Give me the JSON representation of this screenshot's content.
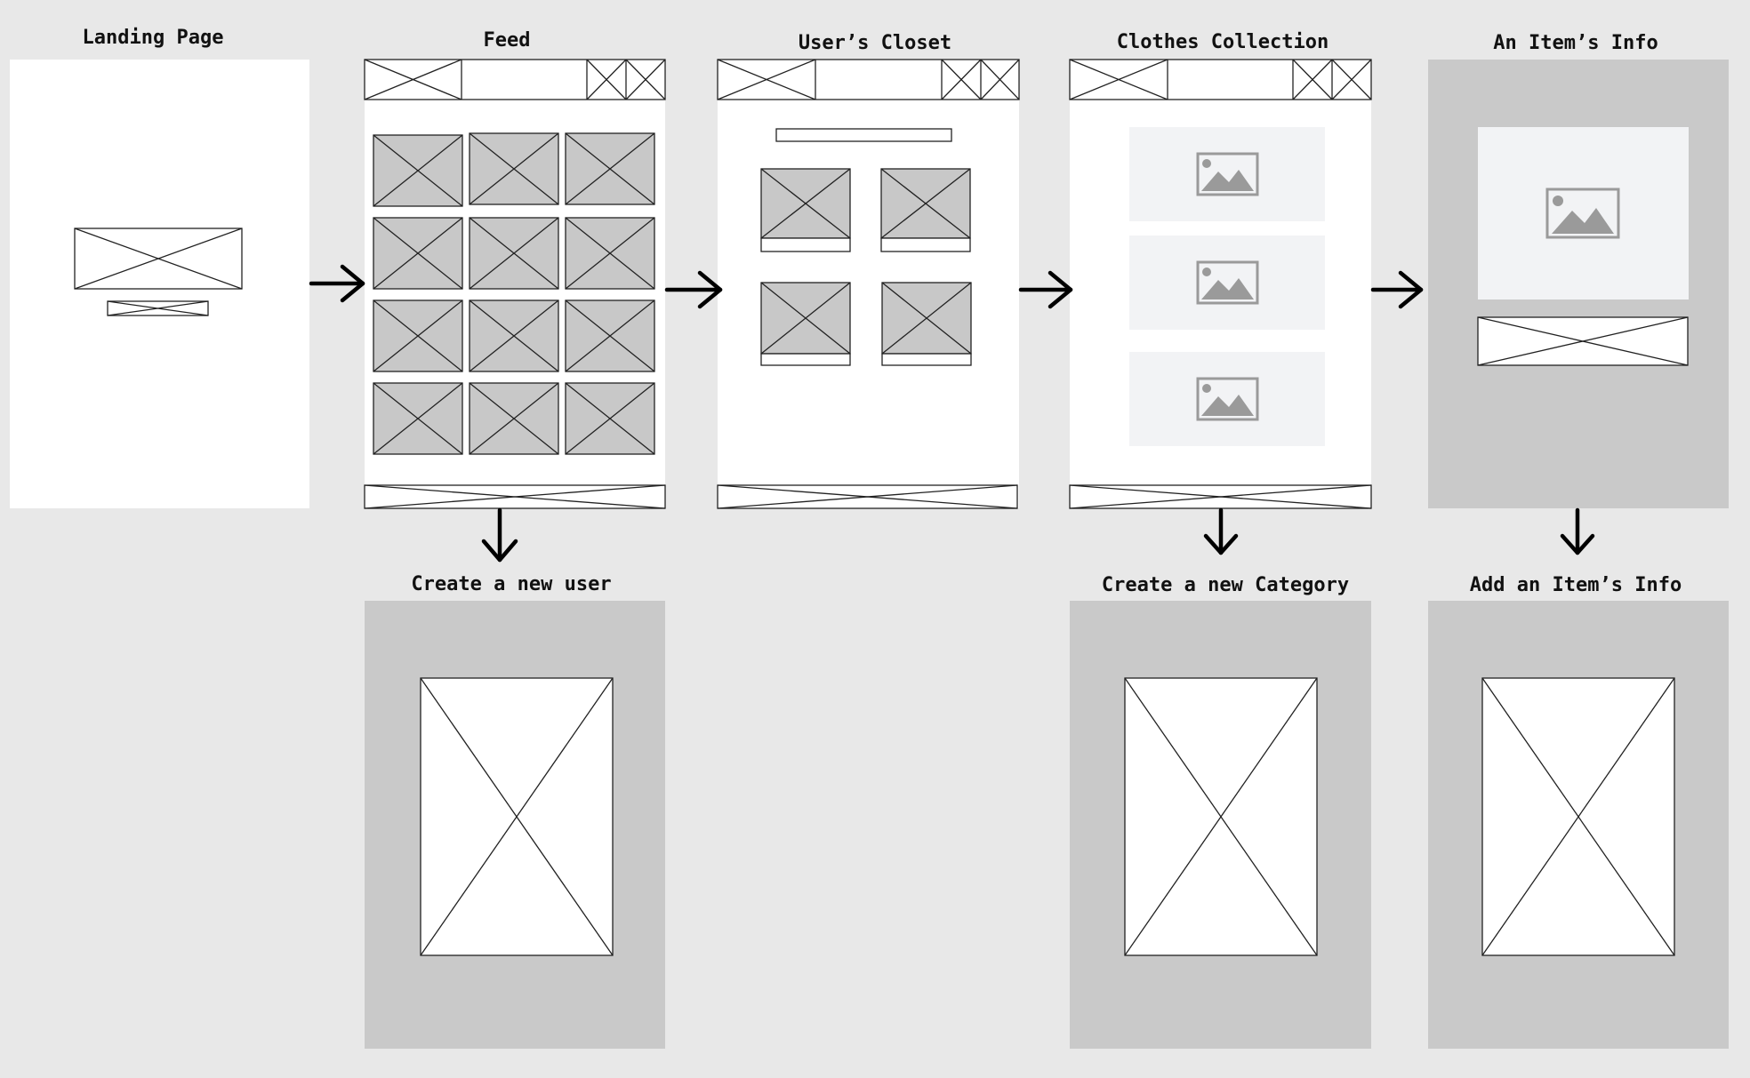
{
  "colors": {
    "background": "#e8e8e8",
    "screen_white": "#ffffff",
    "screen_gray": "#c9c9c9",
    "placeholder_gray": "#c8c8c8",
    "image_tile": "#f2f3f5",
    "image_icon": "#9a9a9a",
    "stroke": "#222222"
  },
  "screens": {
    "landing": {
      "title": "Landing Page"
    },
    "feed": {
      "title": "Feed"
    },
    "closet": {
      "title": "User’s Closet"
    },
    "collection": {
      "title": "Clothes Collection"
    },
    "item_info": {
      "title": "An Item’s Info"
    },
    "create_user": {
      "title": "Create a new user"
    },
    "create_category": {
      "title": "Create a new Category"
    },
    "add_item_info": {
      "title": "Add an Item’s Info"
    }
  },
  "icons": {
    "placeholder": "crossed-box-icon",
    "image": "image-icon",
    "arrow_right": "arrow-right-icon",
    "arrow_down": "arrow-down-icon"
  }
}
